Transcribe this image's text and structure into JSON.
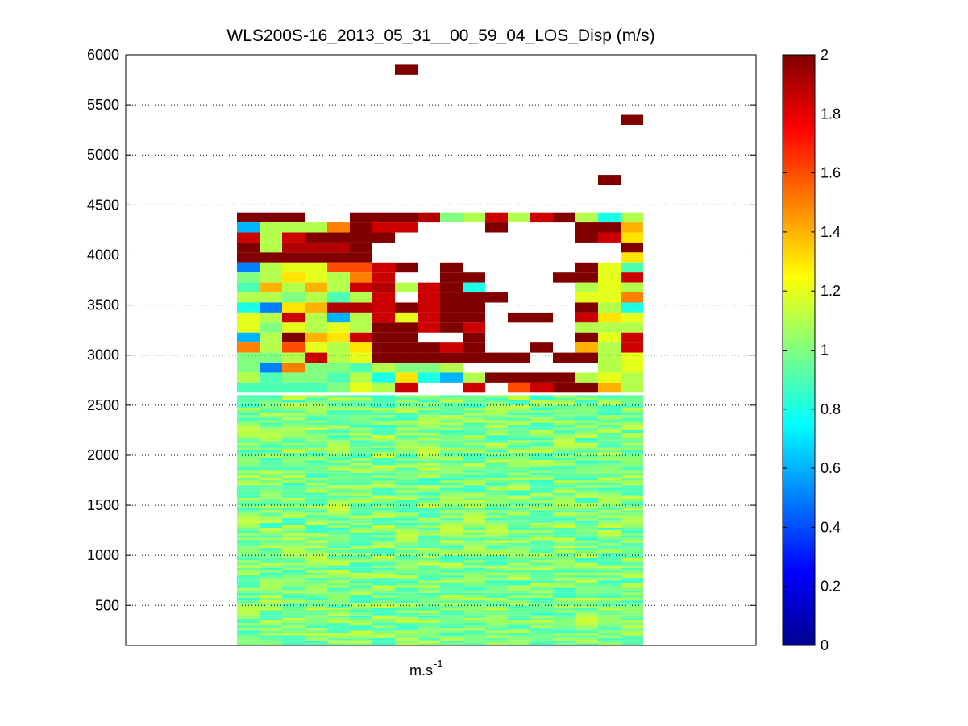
{
  "chart_data": {
    "type": "heatmap",
    "title": "WLS200S-16_2013_05_31__00_59_04_LOS_Disp (m/s)",
    "xlabel": "m.s",
    "xlabel_superscript": "-1",
    "ylabel": "",
    "ylim": [
      100,
      6000
    ],
    "yticks": [
      500,
      1000,
      1500,
      2000,
      2500,
      3000,
      3500,
      4000,
      4500,
      5000,
      5500,
      6000
    ],
    "grid": "y-dotted",
    "colormap": "jet",
    "clim": [
      0,
      2
    ],
    "colorbar_ticks": [
      0,
      0.2,
      0.4,
      0.6,
      0.8,
      1,
      1.2,
      1.4,
      1.6,
      1.8,
      2
    ],
    "n_columns": 18,
    "lower_region": {
      "y_range": [
        100,
        2600
      ],
      "typical_value": 0.95,
      "value_range": [
        0.85,
        1.15
      ],
      "description_values": "dense near-uniform values around 0.9-1.1"
    },
    "rows": [
      {
        "y": 4375,
        "values": [
          2,
          2,
          2,
          null,
          null,
          2,
          2,
          2,
          1.9,
          1.0,
          1.1,
          1.85,
          1.1,
          1.85,
          2,
          1.1,
          0.8,
          1.1
        ]
      },
      {
        "y": 4275,
        "values": [
          0.6,
          1.1,
          1.1,
          1.1,
          1.5,
          2,
          1.85,
          1.85,
          null,
          null,
          null,
          2,
          null,
          null,
          null,
          2,
          2,
          1.4
        ]
      },
      {
        "y": 4175,
        "values": [
          1.85,
          1.1,
          1.85,
          2,
          2,
          2,
          2,
          null,
          null,
          null,
          null,
          null,
          null,
          null,
          null,
          2,
          1.85,
          1.3
        ]
      },
      {
        "y": 4075,
        "values": [
          2,
          1.1,
          1.9,
          1.9,
          1.9,
          2,
          null,
          null,
          null,
          null,
          null,
          null,
          null,
          null,
          null,
          null,
          null,
          2
        ]
      },
      {
        "y": 3975,
        "values": [
          2,
          2,
          2,
          2,
          2,
          2,
          null,
          null,
          null,
          null,
          null,
          null,
          null,
          null,
          null,
          null,
          null,
          1.3
        ]
      },
      {
        "y": 3875,
        "values": [
          0.5,
          1.1,
          1.2,
          1.2,
          1.6,
          1.6,
          1.85,
          2,
          null,
          2,
          null,
          null,
          null,
          null,
          null,
          2,
          1.2,
          0.9
        ]
      },
      {
        "y": 3775,
        "values": [
          1.0,
          1.1,
          1.3,
          1.2,
          1.1,
          1.5,
          1.85,
          null,
          null,
          2,
          2,
          null,
          null,
          null,
          2,
          2,
          1.2,
          1.85
        ]
      },
      {
        "y": 3675,
        "values": [
          0.9,
          1.4,
          1.1,
          1.4,
          1.1,
          1.85,
          1.9,
          1.1,
          1.85,
          2,
          0.8,
          null,
          null,
          null,
          null,
          1.1,
          1.2,
          1.1
        ]
      },
      {
        "y": 3575,
        "values": [
          1.1,
          1.1,
          1.0,
          1.1,
          0.9,
          1.1,
          1.85,
          null,
          1.85,
          2,
          2,
          2,
          null,
          null,
          null,
          1.2,
          1.2,
          1.5
        ]
      },
      {
        "y": 3475,
        "values": [
          0.8,
          0.5,
          1.3,
          1.4,
          1.9,
          1.9,
          1.85,
          2,
          1.85,
          2,
          2,
          null,
          null,
          null,
          null,
          2,
          1.1,
          0.8
        ]
      },
      {
        "y": 3375,
        "values": [
          1.2,
          1.1,
          1.85,
          1.1,
          0.6,
          1.1,
          1.85,
          1.2,
          1.85,
          2,
          2,
          null,
          2,
          2,
          null,
          1.85,
          1.3,
          1.2
        ]
      },
      {
        "y": 3275,
        "values": [
          1.2,
          1.0,
          1.2,
          1.1,
          1.2,
          1.1,
          2,
          2,
          1.85,
          2,
          1.85,
          null,
          null,
          null,
          null,
          1.1,
          1.1,
          1.1
        ]
      },
      {
        "y": 3175,
        "values": [
          0.6,
          1.1,
          2,
          1.4,
          1.3,
          1.85,
          2,
          2,
          null,
          null,
          2,
          null,
          null,
          null,
          null,
          2,
          1.2,
          1.85
        ]
      },
      {
        "y": 3075,
        "values": [
          1.5,
          1.1,
          1.6,
          1.2,
          1.1,
          1.3,
          2,
          2,
          2,
          1.85,
          2,
          null,
          null,
          2,
          null,
          1.4,
          1.1,
          1.85
        ]
      },
      {
        "y": 2975,
        "values": [
          1.0,
          1.0,
          1.1,
          1.85,
          1.1,
          1.2,
          2,
          2,
          2,
          2,
          2,
          2,
          2,
          null,
          2,
          2,
          1.1,
          1.2
        ]
      },
      {
        "y": 2875,
        "values": [
          1.0,
          0.5,
          1.5,
          1.0,
          1.0,
          0.9,
          1.1,
          1.0,
          1.0,
          1.1,
          null,
          null,
          null,
          null,
          null,
          null,
          1.1,
          1.2
        ]
      },
      {
        "y": 2775,
        "values": [
          1.1,
          0.9,
          1.0,
          1.0,
          0.9,
          1.1,
          0.8,
          1.3,
          0.8,
          0.6,
          1.1,
          2,
          2,
          2,
          2,
          1.1,
          1.2,
          1.1
        ]
      },
      {
        "y": 2675,
        "values": [
          0.9,
          0.9,
          0.9,
          0.9,
          1.0,
          1.2,
          1.1,
          1.85,
          null,
          null,
          1.85,
          null,
          1.6,
          1.85,
          2,
          2,
          1.4,
          1.1
        ]
      }
    ],
    "isolated_cells": [
      {
        "column": 7,
        "y": 5850,
        "value": 2
      },
      {
        "column": 17,
        "y": 5350,
        "value": 2
      },
      {
        "column": 16,
        "y": 4750,
        "value": 2
      }
    ]
  }
}
